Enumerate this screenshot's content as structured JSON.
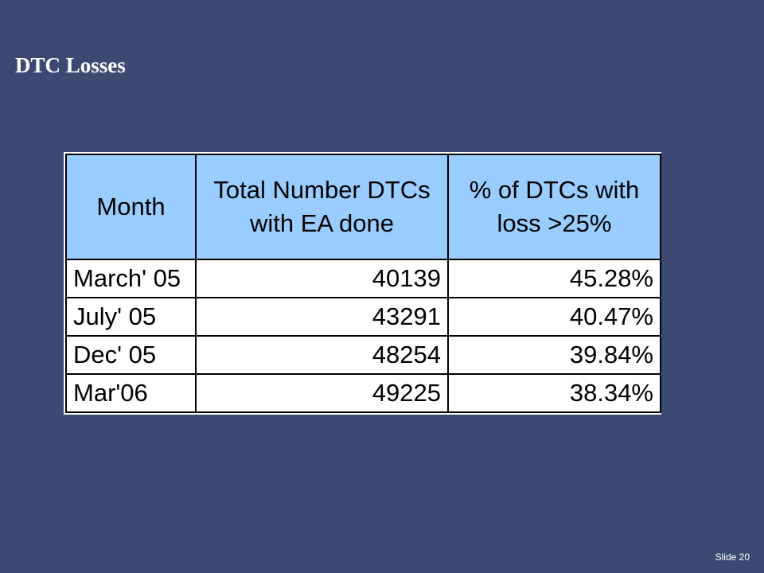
{
  "slide": {
    "title": "DTC Losses",
    "slide_number": "Slide 20"
  },
  "table": {
    "headers": {
      "month": "Month",
      "total_line1": "Total Number DTCs",
      "total_line2": "with EA done",
      "pct_line1": "% of DTCs with",
      "pct_line2": "loss >25%"
    },
    "rows": [
      {
        "month": "March' 05",
        "total": "40139",
        "pct": "45.28%"
      },
      {
        "month": "July' 05",
        "total": "43291",
        "pct": "40.47%"
      },
      {
        "month": "Dec' 05",
        "total": "48254",
        "pct": "39.84%"
      },
      {
        "month": "Mar'06",
        "total": "49225",
        "pct": "38.34%"
      }
    ]
  },
  "colors": {
    "background": "#3c4a73",
    "header_fill": "#99ccff"
  }
}
